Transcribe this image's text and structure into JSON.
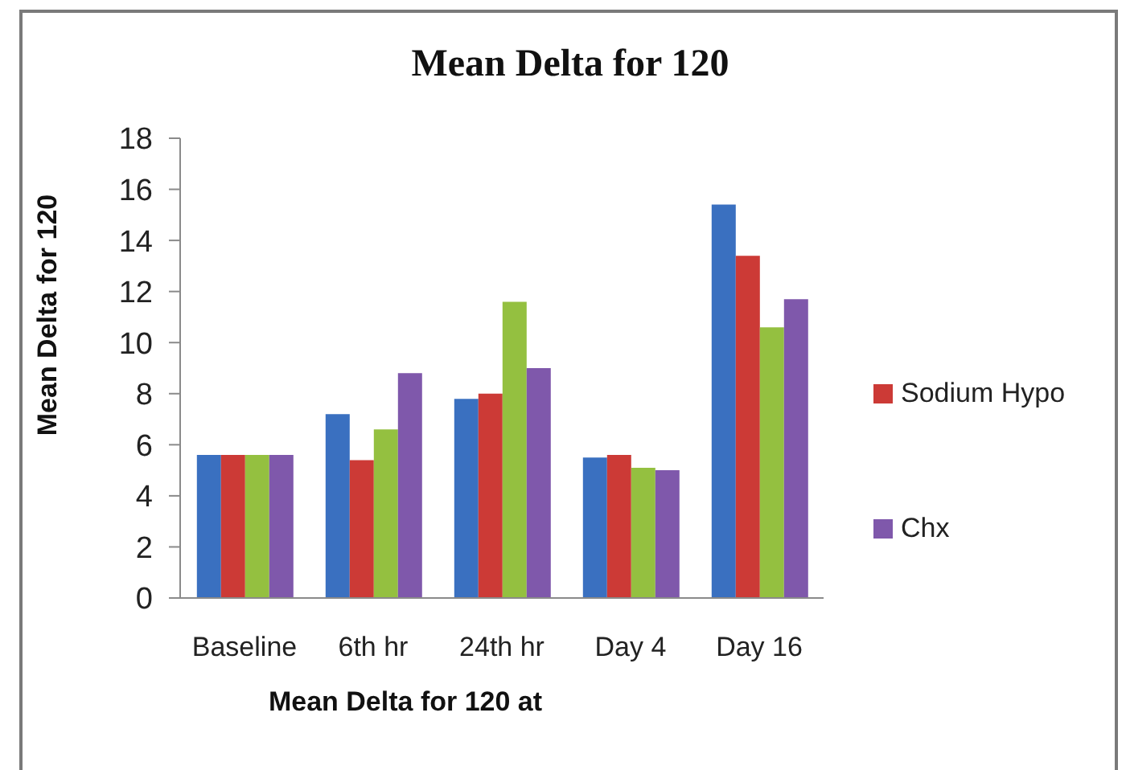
{
  "chart_data": {
    "type": "bar",
    "title": "Mean Delta for 120",
    "xlabel": "Mean Delta for 120 at",
    "ylabel": "Mean Delta for 120",
    "categories": [
      "Baseline",
      "6th hr",
      "24th hr",
      "Day 4",
      "Day 16"
    ],
    "series": [
      {
        "color": "#3a70c0",
        "values": [
          5.6,
          7.2,
          7.8,
          5.5,
          15.4
        ]
      },
      {
        "name": "Sodium Hypo",
        "color": "#cc3a36",
        "values": [
          5.6,
          5.4,
          8.0,
          5.6,
          13.4
        ]
      },
      {
        "color": "#94c040",
        "values": [
          5.6,
          6.6,
          11.6,
          5.1,
          10.6
        ]
      },
      {
        "name": "Chx",
        "color": "#7f58ab",
        "values": [
          5.6,
          8.8,
          9.0,
          5.0,
          11.7
        ]
      }
    ],
    "ylim": [
      0,
      18
    ],
    "yticks": [
      0,
      2,
      4,
      6,
      8,
      10,
      12,
      14,
      16,
      18
    ],
    "legend": "right"
  }
}
